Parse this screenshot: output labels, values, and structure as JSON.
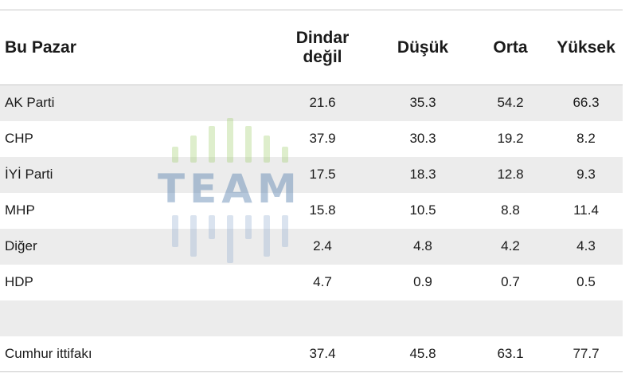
{
  "table": {
    "headers": {
      "h0": "Bu Pazar",
      "h1_line1": "Dindar",
      "h1_line2": "değil",
      "h2": "Düşük",
      "h3": "Orta",
      "h4": "Yüksek"
    },
    "rows": [
      {
        "party": "AK Parti",
        "values": [
          "21.6",
          "35.3",
          "54.2",
          "66.3"
        ],
        "shaded": true
      },
      {
        "party": "CHP",
        "values": [
          "37.9",
          "30.3",
          "19.2",
          "8.2"
        ],
        "shaded": false
      },
      {
        "party": "İYİ Parti",
        "values": [
          "17.5",
          "18.3",
          "12.8",
          "9.3"
        ],
        "shaded": true
      },
      {
        "party": "MHP",
        "values": [
          "15.8",
          "10.5",
          "8.8",
          "11.4"
        ],
        "shaded": false
      },
      {
        "party": "Diğer",
        "values": [
          "2.4",
          "4.8",
          "4.2",
          "4.3"
        ],
        "shaded": true
      },
      {
        "party": "HDP",
        "values": [
          "4.7",
          "0.9",
          "0.7",
          "0.5"
        ],
        "shaded": false
      },
      {
        "party": "",
        "values": [
          "",
          "",
          "",
          ""
        ],
        "shaded": true
      },
      {
        "party": "Cumhur ittifakı",
        "values": [
          "37.4",
          "45.8",
          "63.1",
          "77.7"
        ],
        "shaded": false
      }
    ]
  },
  "watermark": {
    "text": "TEAM"
  }
}
